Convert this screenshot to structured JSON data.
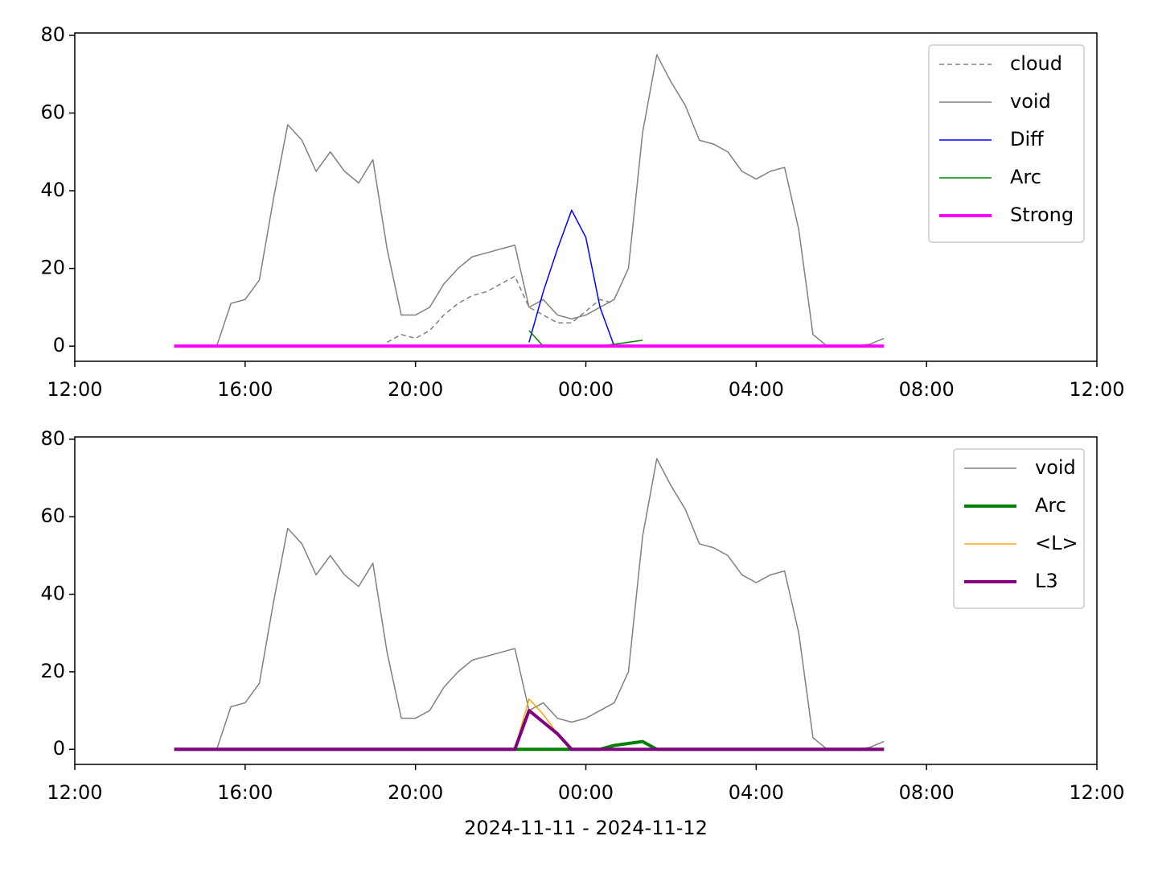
{
  "chart_data": [
    {
      "type": "line",
      "x": [
        "2024-11-11T14:20",
        "2024-11-11T14:40",
        "2024-11-11T15:00",
        "2024-11-11T15:20",
        "2024-11-11T15:40",
        "2024-11-11T16:00",
        "2024-11-11T16:20",
        "2024-11-11T16:40",
        "2024-11-11T17:00",
        "2024-11-11T17:20",
        "2024-11-11T17:40",
        "2024-11-11T18:00",
        "2024-11-11T18:20",
        "2024-11-11T18:40",
        "2024-11-11T19:00",
        "2024-11-11T19:20",
        "2024-11-11T19:40",
        "2024-11-11T20:00",
        "2024-11-11T20:20",
        "2024-11-11T20:40",
        "2024-11-11T21:00",
        "2024-11-11T21:20",
        "2024-11-11T21:40",
        "2024-11-11T22:00",
        "2024-11-11T22:20",
        "2024-11-11T22:40",
        "2024-11-11T23:00",
        "2024-11-11T23:20",
        "2024-11-11T23:40",
        "2024-11-12T00:00",
        "2024-11-12T00:20",
        "2024-11-12T00:40",
        "2024-11-12T01:00",
        "2024-11-12T01:20",
        "2024-11-12T01:40",
        "2024-11-12T02:00",
        "2024-11-12T02:20",
        "2024-11-12T02:40",
        "2024-11-12T03:00",
        "2024-11-12T03:20",
        "2024-11-12T03:40",
        "2024-11-12T04:00",
        "2024-11-12T04:20",
        "2024-11-12T04:40",
        "2024-11-12T05:00",
        "2024-11-12T05:20",
        "2024-11-12T05:40",
        "2024-11-12T06:00",
        "2024-11-12T06:20",
        "2024-11-12T06:40",
        "2024-11-12T07:00"
      ],
      "series": [
        {
          "name": "cloud",
          "color": "#808080",
          "linewidth": 1.5,
          "linestyle": "dashed",
          "values": [
            null,
            null,
            null,
            null,
            null,
            null,
            null,
            null,
            null,
            null,
            null,
            null,
            null,
            null,
            null,
            1,
            3,
            2,
            4,
            8,
            11,
            13,
            14,
            16,
            18,
            10,
            8,
            6,
            6,
            9,
            12,
            11,
            null,
            null,
            null,
            null,
            null,
            null,
            null,
            null,
            null,
            null,
            null,
            null,
            null,
            null,
            null,
            null,
            null,
            null,
            null
          ]
        },
        {
          "name": "void",
          "color": "#808080",
          "linewidth": 1.5,
          "linestyle": "solid",
          "values": [
            null,
            null,
            null,
            0,
            11,
            12,
            17,
            38,
            57,
            53,
            45,
            50,
            45,
            42,
            48,
            25,
            8,
            8,
            10,
            16,
            20,
            23,
            24,
            25,
            26,
            10,
            12,
            8,
            7,
            8,
            10,
            12,
            20,
            55,
            75,
            68,
            62,
            53,
            52,
            50,
            45,
            43,
            45,
            46,
            30,
            3,
            0,
            0,
            0,
            0.5,
            2
          ]
        },
        {
          "name": "Diff",
          "color": "#0000ff",
          "linewidth": 1.5,
          "linestyle": "solid",
          "values": [
            null,
            null,
            null,
            null,
            null,
            null,
            null,
            null,
            null,
            null,
            null,
            null,
            null,
            null,
            null,
            null,
            null,
            null,
            null,
            null,
            null,
            null,
            null,
            null,
            null,
            1,
            14,
            25,
            35,
            28,
            10,
            0,
            null,
            null,
            null,
            null,
            null,
            null,
            null,
            null,
            null,
            null,
            null,
            null,
            null,
            null,
            null,
            null,
            null,
            null,
            null
          ]
        },
        {
          "name": "Arc",
          "color": "#008000",
          "linewidth": 1.5,
          "linestyle": "solid",
          "values": [
            null,
            null,
            null,
            null,
            null,
            null,
            null,
            null,
            null,
            null,
            null,
            null,
            null,
            null,
            null,
            null,
            null,
            null,
            null,
            null,
            null,
            null,
            null,
            null,
            null,
            4,
            0,
            0,
            0,
            0,
            0,
            0.5,
            1,
            1.5,
            null,
            null,
            null,
            null,
            null,
            null,
            null,
            null,
            null,
            null,
            null,
            null,
            null,
            null,
            null,
            null,
            null
          ]
        },
        {
          "name": "Strong",
          "color": "#ff00ff",
          "linewidth": 4,
          "linestyle": "solid",
          "values": [
            0,
            0,
            0,
            0,
            0,
            0,
            0,
            0,
            0,
            0,
            0,
            0,
            0,
            0,
            0,
            0,
            0,
            0,
            0,
            0,
            0,
            0,
            0,
            0,
            0,
            0,
            0,
            0,
            0,
            0,
            0,
            0,
            0,
            0,
            0,
            0,
            0,
            0,
            0,
            0,
            0,
            0,
            0,
            0,
            0,
            0,
            0,
            0,
            0,
            0,
            0
          ]
        }
      ],
      "xlim": [
        "2024-11-11T12:00",
        "2024-11-12T12:00"
      ],
      "xticks": [
        {
          "value": "2024-11-11T12:00",
          "label": "12:00"
        },
        {
          "value": "2024-11-11T16:00",
          "label": "16:00"
        },
        {
          "value": "2024-11-11T20:00",
          "label": "20:00"
        },
        {
          "value": "2024-11-12T00:00",
          "label": "00:00"
        },
        {
          "value": "2024-11-12T04:00",
          "label": "04:00"
        },
        {
          "value": "2024-11-12T08:00",
          "label": "08:00"
        },
        {
          "value": "2024-11-12T12:00",
          "label": "12:00"
        }
      ],
      "ylim": [
        -3.9,
        80.6
      ],
      "yticks": [
        0,
        20,
        40,
        60,
        80
      ],
      "legend": "upper right"
    },
    {
      "type": "line",
      "x": [
        "2024-11-11T14:20",
        "2024-11-11T14:40",
        "2024-11-11T15:00",
        "2024-11-11T15:20",
        "2024-11-11T15:40",
        "2024-11-11T16:00",
        "2024-11-11T16:20",
        "2024-11-11T16:40",
        "2024-11-11T17:00",
        "2024-11-11T17:20",
        "2024-11-11T17:40",
        "2024-11-11T18:00",
        "2024-11-11T18:20",
        "2024-11-11T18:40",
        "2024-11-11T19:00",
        "2024-11-11T19:20",
        "2024-11-11T19:40",
        "2024-11-11T20:00",
        "2024-11-11T20:20",
        "2024-11-11T20:40",
        "2024-11-11T21:00",
        "2024-11-11T21:20",
        "2024-11-11T21:40",
        "2024-11-11T22:00",
        "2024-11-11T22:20",
        "2024-11-11T22:40",
        "2024-11-11T23:00",
        "2024-11-11T23:20",
        "2024-11-11T23:40",
        "2024-11-12T00:00",
        "2024-11-12T00:20",
        "2024-11-12T00:40",
        "2024-11-12T01:00",
        "2024-11-12T01:20",
        "2024-11-12T01:40",
        "2024-11-12T02:00",
        "2024-11-12T02:20",
        "2024-11-12T02:40",
        "2024-11-12T03:00",
        "2024-11-12T03:20",
        "2024-11-12T03:40",
        "2024-11-12T04:00",
        "2024-11-12T04:20",
        "2024-11-12T04:40",
        "2024-11-12T05:00",
        "2024-11-12T05:20",
        "2024-11-12T05:40",
        "2024-11-12T06:00",
        "2024-11-12T06:20",
        "2024-11-12T06:40",
        "2024-11-12T07:00"
      ],
      "series": [
        {
          "name": "void",
          "color": "#808080",
          "linewidth": 1.5,
          "linestyle": "solid",
          "values": [
            null,
            null,
            null,
            0,
            11,
            12,
            17,
            38,
            57,
            53,
            45,
            50,
            45,
            42,
            48,
            25,
            8,
            8,
            10,
            16,
            20,
            23,
            24,
            25,
            26,
            10,
            12,
            8,
            7,
            8,
            10,
            12,
            20,
            55,
            75,
            68,
            62,
            53,
            52,
            50,
            45,
            43,
            45,
            46,
            30,
            3,
            0,
            0,
            0,
            0.5,
            2
          ]
        },
        {
          "name": "Arc",
          "color": "#008000",
          "linewidth": 4,
          "linestyle": "solid",
          "values": [
            0,
            0,
            0,
            0,
            0,
            0,
            0,
            0,
            0,
            0,
            0,
            0,
            0,
            0,
            0,
            0,
            0,
            0,
            0,
            0,
            0,
            0,
            0,
            0,
            0,
            0,
            0,
            0,
            0,
            0,
            0,
            1,
            1.5,
            2,
            0,
            0,
            0,
            0,
            0,
            0,
            0,
            0,
            0,
            0,
            0,
            0,
            0,
            0,
            0,
            0,
            0
          ]
        },
        {
          "name": "<L>",
          "color": "#ffa500",
          "linewidth": 1.5,
          "linestyle": "solid",
          "values": [
            0,
            0,
            0,
            0,
            0,
            0,
            0,
            0,
            0,
            0,
            0,
            0,
            0,
            0,
            0,
            0,
            0,
            0,
            0,
            0,
            0,
            0,
            0,
            0,
            0,
            13,
            9,
            4,
            0,
            0,
            0,
            0,
            0,
            0,
            0,
            0,
            0,
            0,
            0,
            0,
            0,
            0,
            0,
            0,
            0,
            0,
            0,
            0,
            0,
            0,
            0
          ]
        },
        {
          "name": "L3",
          "color": "#800080",
          "linewidth": 4,
          "linestyle": "solid",
          "values": [
            0,
            0,
            0,
            0,
            0,
            0,
            0,
            0,
            0,
            0,
            0,
            0,
            0,
            0,
            0,
            0,
            0,
            0,
            0,
            0,
            0,
            0,
            0,
            0,
            0,
            10,
            7,
            4,
            0,
            0,
            0,
            0,
            0,
            0,
            0,
            0,
            0,
            0,
            0,
            0,
            0,
            0,
            0,
            0,
            0,
            0,
            0,
            0,
            0,
            0,
            0
          ]
        }
      ],
      "xlim": [
        "2024-11-11T12:00",
        "2024-11-12T12:00"
      ],
      "xticks": [
        {
          "value": "2024-11-11T12:00",
          "label": "12:00"
        },
        {
          "value": "2024-11-11T16:00",
          "label": "16:00"
        },
        {
          "value": "2024-11-11T20:00",
          "label": "20:00"
        },
        {
          "value": "2024-11-12T00:00",
          "label": "00:00"
        },
        {
          "value": "2024-11-12T04:00",
          "label": "04:00"
        },
        {
          "value": "2024-11-12T08:00",
          "label": "08:00"
        },
        {
          "value": "2024-11-12T12:00",
          "label": "12:00"
        }
      ],
      "ylim": [
        -3.9,
        80.6
      ],
      "yticks": [
        0,
        20,
        40,
        60,
        80
      ],
      "legend": "upper right",
      "xlabel": "2024-11-11 - 2024-11-12"
    }
  ]
}
